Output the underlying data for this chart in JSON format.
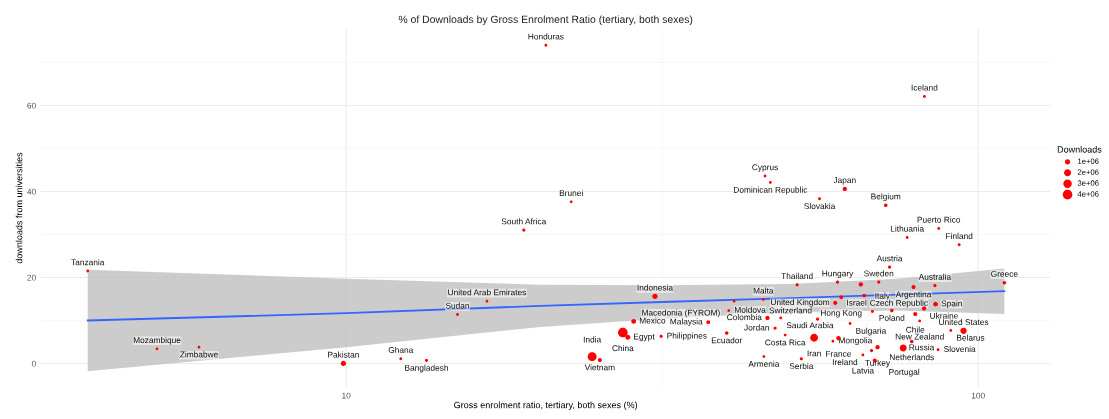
{
  "chart_data": {
    "type": "bubble",
    "title": "% of Downloads by Gross Enrolment Ratio (tertiary, both sexes)",
    "xlabel": "Gross enrolment ratio, tertiary, both sexes (%)",
    "ylabel": "downloads from universities",
    "legend_title": "Downloads",
    "log": "x",
    "grid": true,
    "xlim": [
      3.29,
      130
    ],
    "ylim": [
      -5.6,
      77.9
    ],
    "xticks": [
      10,
      100
    ],
    "yticks": [
      0,
      20,
      40,
      60
    ],
    "size_legend": [
      {
        "value": 1000000,
        "label": "1e+06"
      },
      {
        "value": 2000000,
        "label": "2e+06"
      },
      {
        "value": 3000000,
        "label": "3e+06"
      },
      {
        "value": 4000000,
        "label": "4e+06"
      }
    ],
    "series": [
      {
        "color": "#ff0000",
        "x": [
          20.7,
          82.2,
          46.0,
          46.9,
          61.5,
          22.7,
          56.1,
          71.4,
          86.6,
          77.2,
          93.3,
          72.4,
          59.9,
          69.6,
          65.2,
          51.7,
          85.4,
          110,
          79.0,
          66.0,
          30.8,
          60.7,
          45.7,
          41.1,
          59.4,
          82.1,
          85.6,
          73.0,
          40.3,
          68.0,
          79.5,
          48.7,
          47.7,
          46.4,
          28.5,
          55.7,
          80.8,
          37.4,
          62.7,
          27.4,
          27.9,
          31.5,
          40.0,
          49.5,
          55.0,
          60.1,
          58.9,
          94.8,
          90.5,
          78.5,
          69.3,
          76.1,
          86.4,
          67.8,
          65.7,
          68.6,
          52.5,
          45.8,
          24.5,
          25.2,
          3.9,
          19.1,
          16.7,
          15.0,
          5.02,
          5.85,
          9.9,
          12.2,
          13.4
        ],
        "values": [
          74.0,
          62.1,
          43.6,
          42.1,
          40.6,
          37.6,
          38.3,
          36.8,
          31.4,
          29.3,
          27.6,
          22.4,
          18.9,
          18.9,
          18.4,
          18.3,
          18.1,
          18.8,
          17.8,
          15.8,
          15.6,
          15.4,
          14.9,
          14.5,
          14.1,
          12.8,
          13.8,
          12.3,
          12.3,
          12.1,
          11.5,
          10.6,
          8.2,
          10.6,
          9.8,
          10.3,
          9.9,
          9.6,
          9.3,
          7.2,
          6.1,
          6.3,
          7.1,
          6.6,
          6.0,
          5.9,
          5.2,
          7.6,
          7.7,
          5.1,
          3.8,
          3.6,
          3.2,
          3.0,
          2.0,
          0.7,
          1.1,
          1.6,
          1.6,
          0.8,
          21.5,
          31.0,
          14.5,
          11.4,
          3.4,
          3.8,
          0.0,
          1.1,
          0.7
        ],
        "sizes": [
          100000,
          150000,
          100000,
          100000,
          600000,
          100000,
          150000,
          300000,
          100000,
          100000,
          150000,
          200000,
          200000,
          200000,
          600000,
          200000,
          200000,
          300000,
          500000,
          300000,
          1000000,
          400000,
          100000,
          100000,
          500000,
          600000,
          700000,
          300000,
          100000,
          150000,
          500000,
          100000,
          200000,
          600000,
          800000,
          200000,
          100000,
          400000,
          100000,
          4000000,
          900000,
          200000,
          300000,
          100000,
          2600000,
          600000,
          100000,
          1600000,
          100000,
          300000,
          600000,
          1900000,
          100000,
          200000,
          100000,
          500000,
          200000,
          100000,
          3400000,
          500000,
          100000,
          200000,
          100000,
          100000,
          100000,
          100000,
          1000000,
          100000,
          200000
        ]
      },
      {
        "type": "line",
        "color": "#3366ff",
        "x": [
          3.9,
          10,
          20.3,
          31.6,
          50.4,
          74.5,
          110
        ],
        "values": [
          10.0,
          11.7,
          13.4,
          14.3,
          15.2,
          16.0,
          16.8
        ],
        "lower": [
          -1.8,
          3.8,
          8.5,
          10.4,
          11.9,
          12.3,
          11.5
        ],
        "upper": [
          21.8,
          19.7,
          18.3,
          18.2,
          18.5,
          19.7,
          22.1
        ]
      }
    ],
    "annotations": [
      {
        "text": "Honduras",
        "x": 20.7,
        "y": 74.0
      },
      {
        "text": "Iceland",
        "x": 82.2,
        "y": 62.1
      },
      {
        "text": "Cyprus",
        "x": 46.0,
        "y": 43.6
      },
      {
        "text": "Dominican Republic",
        "x": 46.9,
        "y": 42.1
      },
      {
        "text": "Japan",
        "x": 61.5,
        "y": 40.6
      },
      {
        "text": "Brunei",
        "x": 22.7,
        "y": 37.6
      },
      {
        "text": "Slovakia",
        "x": 56.1,
        "y": 38.3
      },
      {
        "text": "Belgium",
        "x": 71.4,
        "y": 36.8
      },
      {
        "text": "Puerto Rico",
        "x": 86.6,
        "y": 31.4
      },
      {
        "text": "Lithuania",
        "x": 77.2,
        "y": 29.3
      },
      {
        "text": "Finland",
        "x": 93.3,
        "y": 27.6
      },
      {
        "text": "Austria",
        "x": 72.4,
        "y": 22.4
      },
      {
        "text": "Hungary",
        "x": 59.9,
        "y": 18.9
      },
      {
        "text": "Sweden",
        "x": 69.6,
        "y": 18.9
      },
      {
        "text": "Italy",
        "x": 65.2,
        "y": 18.4
      },
      {
        "text": "Thailand",
        "x": 51.7,
        "y": 18.3
      },
      {
        "text": "Australia",
        "x": 85.4,
        "y": 18.1
      },
      {
        "text": "Greece",
        "x": 110,
        "y": 18.8
      },
      {
        "text": "Argentina",
        "x": 79.0,
        "y": 17.8
      },
      {
        "text": "Czech Republic",
        "x": 66.0,
        "y": 15.8
      },
      {
        "text": "Indonesia",
        "x": 30.8,
        "y": 15.6
      },
      {
        "text": "Hong Kong",
        "x": 60.7,
        "y": 15.4
      },
      {
        "text": "Malta",
        "x": 45.7,
        "y": 14.9
      },
      {
        "text": "Macedonia (FYROM)",
        "x": 41.1,
        "y": 14.5
      },
      {
        "text": "United Kingdom",
        "x": 59.4,
        "y": 14.1
      },
      {
        "text": "Ukraine",
        "x": 82.1,
        "y": 12.8
      },
      {
        "text": "Spain",
        "x": 85.6,
        "y": 13.8
      },
      {
        "text": "Poland",
        "x": 73.0,
        "y": 12.3
      },
      {
        "text": "Moldova",
        "x": 40.3,
        "y": 12.3
      },
      {
        "text": "Israel",
        "x": 68.0,
        "y": 12.1
      },
      {
        "text": "Chile",
        "x": 79.5,
        "y": 11.5
      },
      {
        "text": "Saudi Arabia",
        "x": 48.7,
        "y": 10.6
      },
      {
        "text": "Jordan",
        "x": 47.7,
        "y": 8.2
      },
      {
        "text": "Colombia",
        "x": 46.4,
        "y": 10.6
      },
      {
        "text": "Mexico",
        "x": 28.5,
        "y": 9.8
      },
      {
        "text": "Switzerland",
        "x": 55.7,
        "y": 10.3
      },
      {
        "text": "New Zealand",
        "x": 80.8,
        "y": 9.9
      },
      {
        "text": "Malaysia",
        "x": 37.4,
        "y": 9.6
      },
      {
        "text": "Bulgaria",
        "x": 62.7,
        "y": 9.3
      },
      {
        "text": "China",
        "x": 27.4,
        "y": 7.2
      },
      {
        "text": "Egypt",
        "x": 27.9,
        "y": 6.1
      },
      {
        "text": "Philippines",
        "x": 31.5,
        "y": 6.3
      },
      {
        "text": "Ecuador",
        "x": 40.0,
        "y": 7.1
      },
      {
        "text": "Costa Rica",
        "x": 49.5,
        "y": 6.6
      },
      {
        "text": "Iran",
        "x": 55.0,
        "y": 6.0
      },
      {
        "text": "France",
        "x": 60.1,
        "y": 5.9
      },
      {
        "text": "Mongolia",
        "x": 58.9,
        "y": 5.2
      },
      {
        "text": "United States",
        "x": 94.8,
        "y": 7.6
      },
      {
        "text": "Belarus",
        "x": 90.5,
        "y": 7.7
      },
      {
        "text": "Netherlands",
        "x": 78.5,
        "y": 5.1
      },
      {
        "text": "Turkey",
        "x": 69.3,
        "y": 3.8
      },
      {
        "text": "Russia",
        "x": 76.1,
        "y": 3.6
      },
      {
        "text": "Slovenia",
        "x": 86.4,
        "y": 3.2
      },
      {
        "text": "Ireland",
        "x": 67.8,
        "y": 3.0
      },
      {
        "text": "Latvia",
        "x": 65.7,
        "y": 2.0
      },
      {
        "text": "Portugal",
        "x": 68.6,
        "y": 0.7
      },
      {
        "text": "Serbia",
        "x": 52.5,
        "y": 1.1
      },
      {
        "text": "Armenia",
        "x": 45.8,
        "y": 1.6
      },
      {
        "text": "India",
        "x": 24.5,
        "y": 1.6
      },
      {
        "text": "Vietnam",
        "x": 25.2,
        "y": 0.8
      },
      {
        "text": "Tanzania",
        "x": 3.9,
        "y": 21.5
      },
      {
        "text": "South Africa",
        "x": 19.1,
        "y": 31.0
      },
      {
        "text": "United Arab Emirates",
        "x": 16.7,
        "y": 14.5
      },
      {
        "text": "Sudan",
        "x": 15.0,
        "y": 11.4
      },
      {
        "text": "Mozambique",
        "x": 5.02,
        "y": 3.4
      },
      {
        "text": "Zimbabwe",
        "x": 5.85,
        "y": 3.8
      },
      {
        "text": "Pakistan",
        "x": 9.9,
        "y": 0.0
      },
      {
        "text": "Ghana",
        "x": 12.2,
        "y": 1.1
      },
      {
        "text": "Bangladesh",
        "x": 13.4,
        "y": 0.7
      }
    ]
  }
}
